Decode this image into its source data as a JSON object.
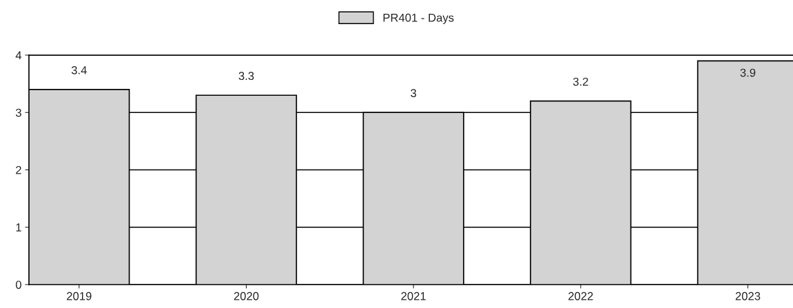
{
  "chart_data": {
    "type": "bar",
    "categories": [
      "2019",
      "2020",
      "2021",
      "2022",
      "2023"
    ],
    "series": [
      {
        "name": "PR401 - Days",
        "color": "#d3d3d3",
        "values": [
          3.4,
          3.3,
          3,
          3.2,
          3.9
        ]
      }
    ],
    "ylim": [
      0,
      4
    ],
    "yticks": [
      0,
      1,
      2,
      3,
      4
    ],
    "grid": "y",
    "legend": "top",
    "data_labels": true
  }
}
